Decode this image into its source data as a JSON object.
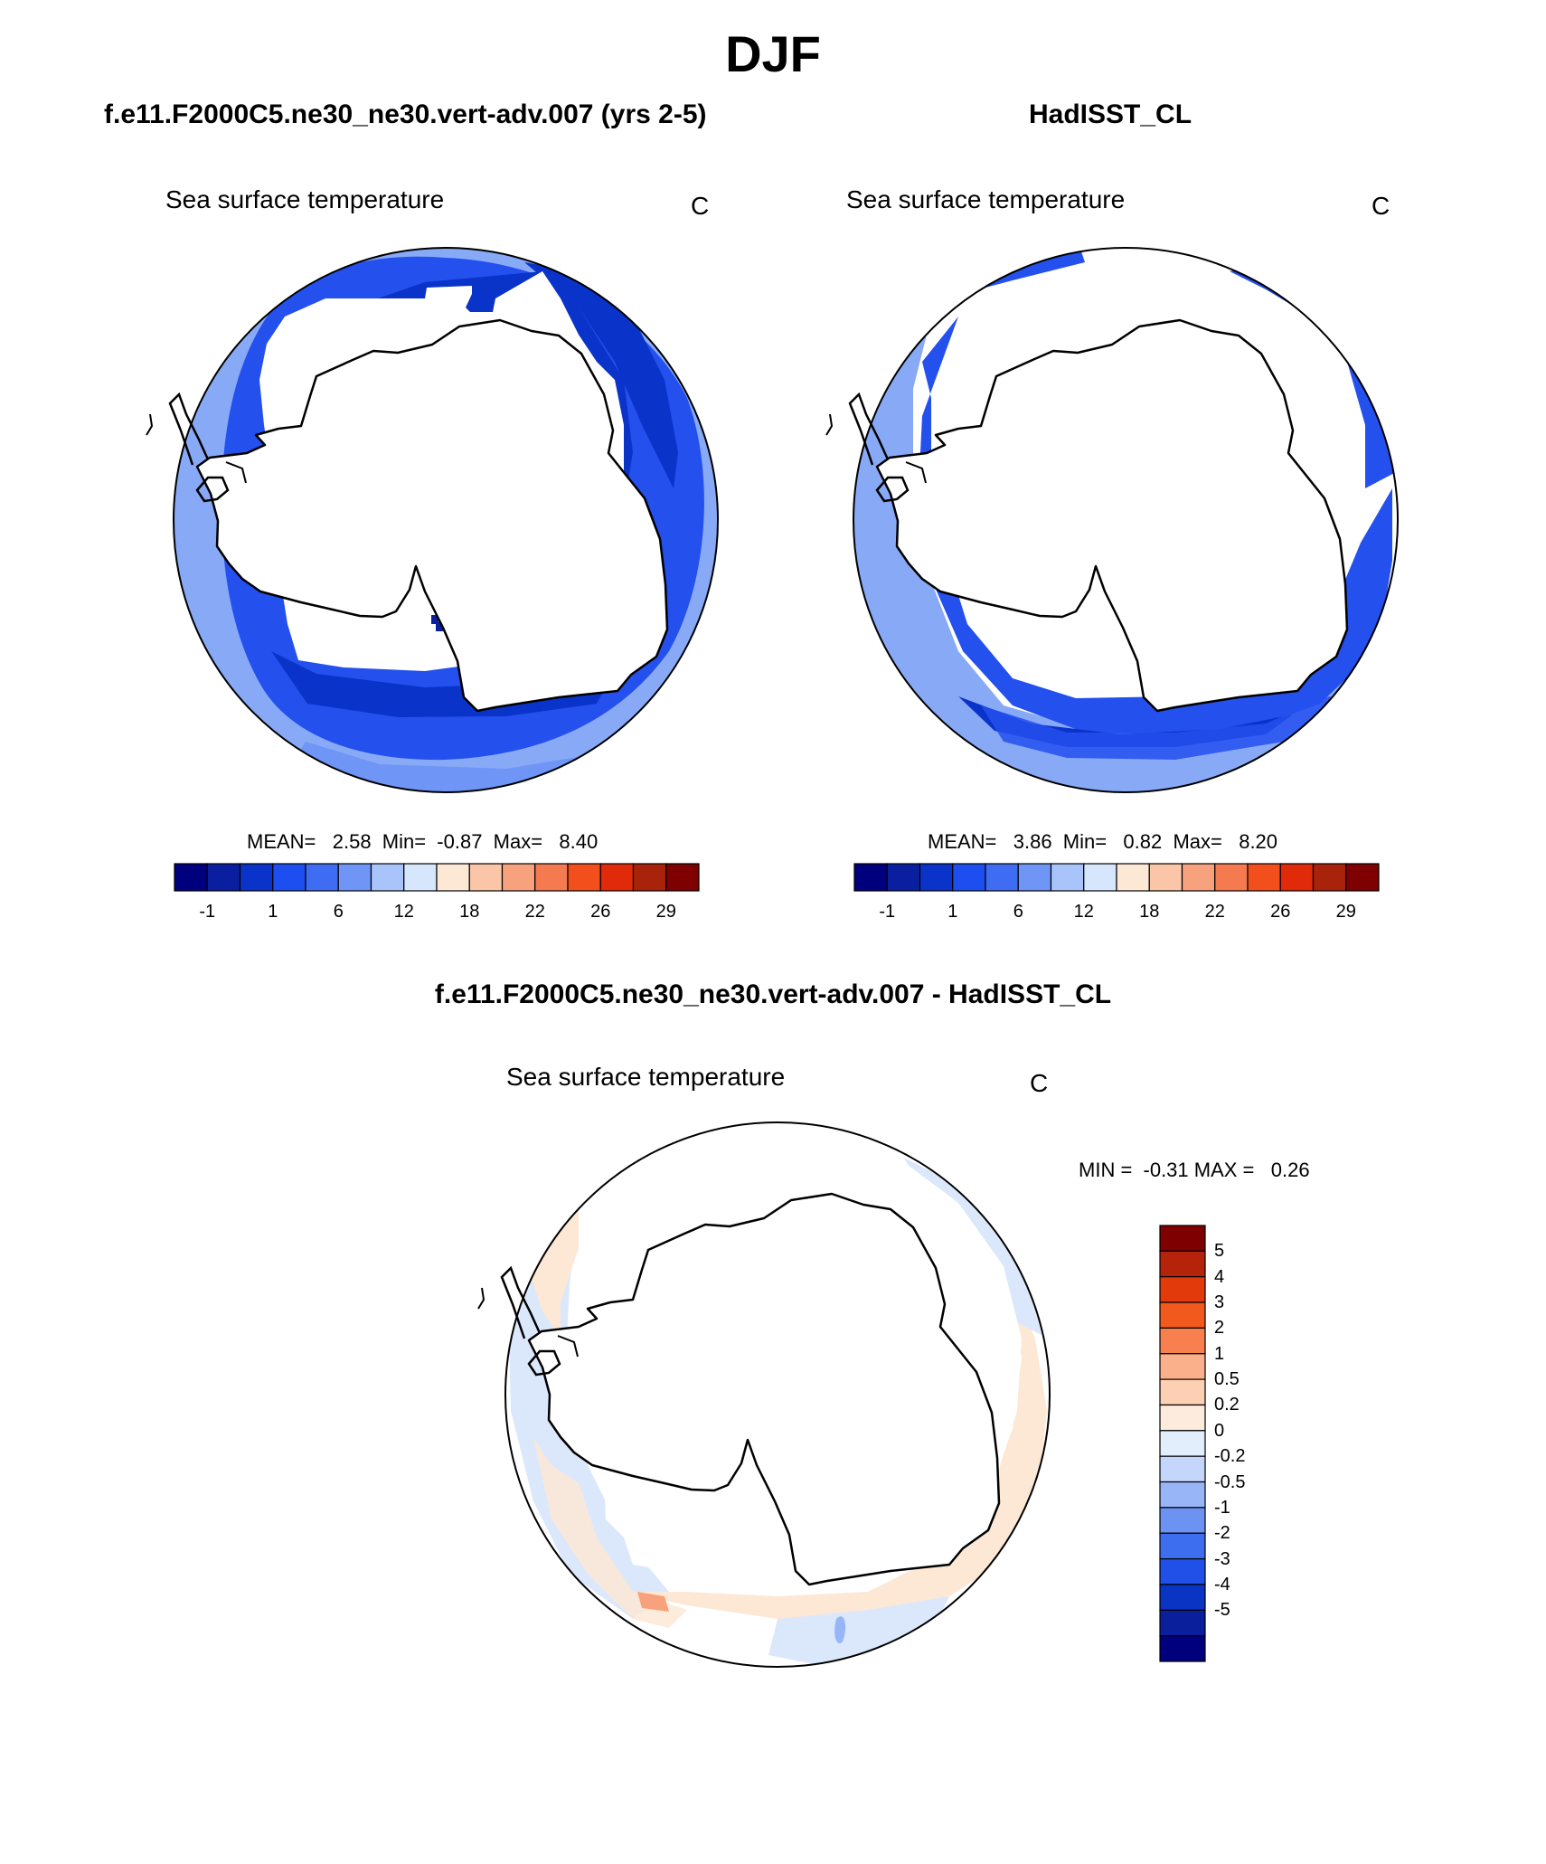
{
  "season": "DJF",
  "panels": [
    {
      "case_title": "f.e11.F2000C5.ne30_ne30.vert-adv.007 (yrs 2-5)",
      "variable": "Sea surface temperature",
      "units": "C",
      "stats": "MEAN=   2.58  Min=  -0.87  Max=   8.40"
    },
    {
      "case_title": "HadISST_CL",
      "variable": "Sea surface temperature",
      "units": "C",
      "stats": "MEAN=   3.86  Min=   0.82  Max=   8.20"
    }
  ],
  "diff_panel": {
    "case_title": "f.e11.F2000C5.ne30_ne30.vert-adv.007 - HadISST_CL",
    "variable": "Sea surface temperature",
    "units": "C",
    "stats": "MIN =  -0.31 MAX =   0.26"
  },
  "colorbar_top": {
    "colors": [
      "#00007f",
      "#0a1fa0",
      "#0a33c9",
      "#1d4ff0",
      "#3e6cf2",
      "#6f95f7",
      "#a9c4fb",
      "#d6e6fd",
      "#fde8d6",
      "#fbc6a8",
      "#f7a27c",
      "#f57a50",
      "#f24f1d",
      "#e02a0a",
      "#a8230a",
      "#7f0000"
    ],
    "tick_labels": [
      "-1",
      "1",
      "6",
      "12",
      "18",
      "22",
      "26",
      "29"
    ]
  },
  "colorbar_diff": {
    "colors": [
      "#7f0000",
      "#b4230a",
      "#e23a0a",
      "#f25a1d",
      "#f7804e",
      "#fab08a",
      "#fdd0b3",
      "#fdecdd",
      "#e3eefc",
      "#c4d6fb",
      "#98b6f7",
      "#6c92f2",
      "#3e6ef0",
      "#2150e8",
      "#0a34c4",
      "#0a1f9c",
      "#00007f"
    ],
    "tick_labels": [
      "5",
      "4",
      "3",
      "2",
      "1",
      "0.5",
      "0.2",
      "0",
      "-0.2",
      "-0.5",
      "-1",
      "-2",
      "-3",
      "-4",
      "-5"
    ]
  }
}
